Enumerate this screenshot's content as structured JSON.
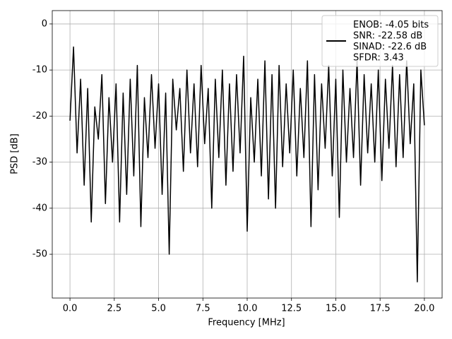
{
  "chart_data": {
    "type": "line",
    "xlabel": "Frequency [MHz]",
    "ylabel": "PSD [dB]",
    "x": [
      0,
      0.2,
      0.4,
      0.6,
      0.8,
      1,
      1.2,
      1.4,
      1.6,
      1.8,
      2,
      2.2,
      2.4,
      2.6,
      2.8,
      3,
      3.2,
      3.4,
      3.6,
      3.8,
      4,
      4.2,
      4.4,
      4.6,
      4.8,
      5,
      5.2,
      5.4,
      5.6,
      5.8,
      6,
      6.2,
      6.4,
      6.6,
      6.8,
      7,
      7.2,
      7.4,
      7.6,
      7.8,
      8,
      8.2,
      8.4,
      8.6,
      8.8,
      9,
      9.2,
      9.4,
      9.6,
      9.8,
      10,
      10.2,
      10.4,
      10.6,
      10.8,
      11,
      11.2,
      11.4,
      11.6,
      11.8,
      12,
      12.2,
      12.4,
      12.6,
      12.8,
      13,
      13.2,
      13.4,
      13.6,
      13.8,
      14,
      14.2,
      14.4,
      14.6,
      14.8,
      15,
      15.2,
      15.4,
      15.6,
      15.8,
      16,
      16.2,
      16.4,
      16.6,
      16.8,
      17,
      17.2,
      17.4,
      17.6,
      17.8,
      18,
      18.2,
      18.4,
      18.6,
      18.8,
      19,
      19.2,
      19.4,
      19.6,
      19.8,
      20
    ],
    "series": [
      {
        "name": "ENOB: -4.05 bits\nSNR: -22.58 dB\nSINAD: -22.6 dB\nSFDR: 3.43",
        "color": "#000000",
        "values": [
          -21,
          -5,
          -28,
          -12,
          -35,
          -14,
          -43,
          -18,
          -25,
          -11,
          -39,
          -16,
          -30,
          -13,
          -43,
          -15,
          -37,
          -12,
          -33,
          -9,
          -44,
          -16,
          -29,
          -11,
          -27,
          -13,
          -37,
          -15,
          -50,
          -12,
          -23,
          -14,
          -32,
          -10,
          -28,
          -13,
          -31,
          -9,
          -26,
          -14,
          -40,
          -12,
          -29,
          -10,
          -35,
          -13,
          -32,
          -11,
          -28,
          -7,
          -45,
          -16,
          -30,
          -12,
          -33,
          -8,
          -38,
          -11,
          -40,
          -9,
          -31,
          -13,
          -28,
          -10,
          -33,
          -14,
          -29,
          -8,
          -44,
          -11,
          -36,
          -13,
          -27,
          -9,
          -33,
          -12,
          -42,
          -10,
          -30,
          -14,
          -29,
          -8,
          -35,
          -11,
          -28,
          -13,
          -30,
          -10,
          -34,
          -12,
          -27,
          -9,
          -31,
          -11,
          -29,
          -8,
          -26,
          -13,
          -56,
          -10,
          -22
        ]
      }
    ],
    "xlim": [
      -1,
      21
    ],
    "ylim": [
      -59.5,
      2.9
    ],
    "xticks": [
      {
        "value": 0,
        "label": "0.0"
      },
      2.5,
      {
        "value": 5,
        "label": "5.0"
      },
      7.5,
      {
        "value": 10,
        "label": "10.0"
      },
      12.5,
      {
        "value": 15,
        "label": "15.0"
      },
      17.5,
      {
        "value": 20,
        "label": "20.0"
      }
    ],
    "yticks": [
      0,
      -10,
      -20,
      -30,
      -40,
      -50
    ],
    "grid": true,
    "legend": "upper right"
  }
}
